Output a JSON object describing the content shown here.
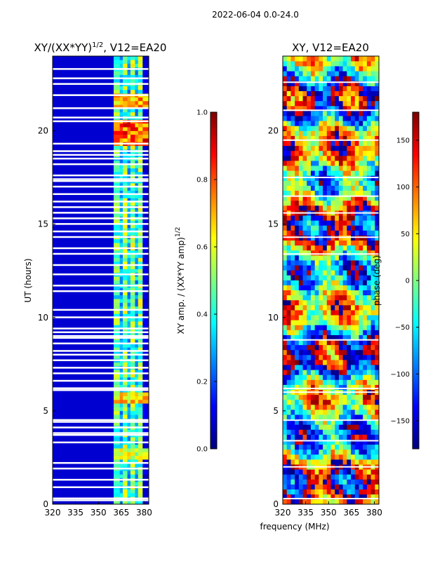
{
  "figure": {
    "suptitle": "2022-06-04 0.0-24.0",
    "common_xlabel": "frequency (MHz)"
  },
  "colormap": {
    "name": "jet",
    "stops": [
      "#00007f",
      "#0000ff",
      "#007fff",
      "#00ffff",
      "#7fff7f",
      "#ffff00",
      "#ff7f00",
      "#ff0000",
      "#7f0000"
    ]
  },
  "chart_data": [
    {
      "type": "heatmap",
      "title_main": "XY/(XX*YY)",
      "title_sup": "1/2",
      "title_tail": ", V12=EA20",
      "ylabel": "UT (hours)",
      "xlim": [
        320,
        383
      ],
      "ylim": [
        0,
        24
      ],
      "xticks": [
        320,
        335,
        350,
        365,
        380
      ],
      "xtick_labels": [
        "320",
        "335",
        "350",
        "365",
        "380"
      ],
      "yticks": [
        0,
        5,
        10,
        15,
        20
      ],
      "ytick_labels": [
        "0",
        "5",
        "10",
        "15",
        "20"
      ],
      "active_band_mhz": [
        360,
        383
      ],
      "band_pattern": [
        {
          "freq": [
            360,
            364
          ],
          "amplitude": 0.5
        },
        {
          "freq": [
            364,
            366
          ],
          "amplitude": 0.35
        },
        {
          "freq": [
            366,
            369
          ],
          "amplitude": 0.55
        },
        {
          "freq": [
            369,
            371
          ],
          "amplitude": 0.35
        },
        {
          "freq": [
            371,
            374
          ],
          "amplitude": 0.55
        },
        {
          "freq": [
            374,
            376
          ],
          "amplitude": 0.35
        },
        {
          "freq": [
            376,
            379
          ],
          "amplitude": 0.55
        },
        {
          "freq": [
            379,
            383
          ],
          "amplitude": 0.1
        }
      ],
      "background_amplitude": 0.08,
      "notable_features": [
        {
          "ut_range": [
            19.2,
            20.5
          ],
          "freq": [
            360,
            380
          ],
          "amplitude": 0.9
        },
        {
          "ut_range": [
            21.2,
            21.9
          ],
          "freq": [
            360,
            380
          ],
          "amplitude": 0.8
        },
        {
          "ut_range": [
            5.4,
            6.0
          ],
          "freq": [
            360,
            380
          ],
          "amplitude": 0.75
        },
        {
          "ut_range": [
            2.4,
            3.1
          ],
          "freq": [
            360,
            380
          ],
          "amplitude": 0.65
        }
      ],
      "flagged_ut_hours": [
        0.2,
        0.3,
        0.9,
        1.3,
        1.9,
        2.2,
        3.3,
        3.7,
        3.8,
        4.1,
        4.4,
        4.5,
        6.1,
        6.2,
        6.6,
        7.0,
        7.3,
        7.7,
        8.0,
        8.2,
        8.6,
        8.9,
        9.0,
        9.2,
        9.4,
        10.0,
        10.4,
        11.4,
        11.7,
        12.3,
        12.8,
        13.4,
        13.7,
        14.3,
        14.6,
        15.0,
        15.3,
        15.6,
        15.9,
        16.2,
        16.6,
        17.0,
        17.3,
        17.4,
        17.6,
        18.2,
        18.5,
        18.7,
        18.9,
        19.3,
        20.5,
        20.7,
        21.2,
        21.9,
        22.5,
        22.8,
        23.3
      ]
    },
    {
      "type": "heatmap",
      "title_main": "XY, V12=EA20",
      "ylabel": "",
      "xlim": [
        320,
        383
      ],
      "ylim": [
        0,
        24
      ],
      "xticks": [
        320,
        335,
        350,
        365,
        380
      ],
      "xtick_labels": [
        "320",
        "335",
        "350",
        "365",
        "380"
      ],
      "yticks": [
        0,
        5,
        10,
        15,
        20
      ],
      "ytick_labels": [
        "0",
        "5",
        "10",
        "15",
        "20"
      ],
      "quantity": "phase (deg)",
      "value_range_deg": [
        -180,
        180
      ],
      "flagged_ut_hours": [
        0.3,
        2.0,
        3.4,
        4.5,
        6.0,
        6.2,
        8.8,
        13.4,
        14.3,
        15.6,
        16.5,
        17.5,
        19.5,
        21.1,
        22.6
      ]
    }
  ],
  "colorbars": [
    {
      "label_main": "XY amp. / (XX*YY amp)",
      "label_sup": "1/2",
      "vmin": 0.0,
      "vmax": 1.0,
      "ticks": [
        0.0,
        0.2,
        0.4,
        0.6,
        0.8,
        1.0
      ],
      "tick_labels": [
        "0.0",
        "0.2",
        "0.4",
        "0.6",
        "0.8",
        "1.0"
      ]
    },
    {
      "label_main": "phase (deg)",
      "vmin": -180,
      "vmax": 180,
      "ticks": [
        -150,
        -100,
        -50,
        0,
        50,
        100,
        150
      ],
      "tick_labels": [
        "−150",
        "−100",
        "−50",
        "0",
        "50",
        "100",
        "150"
      ]
    }
  ]
}
